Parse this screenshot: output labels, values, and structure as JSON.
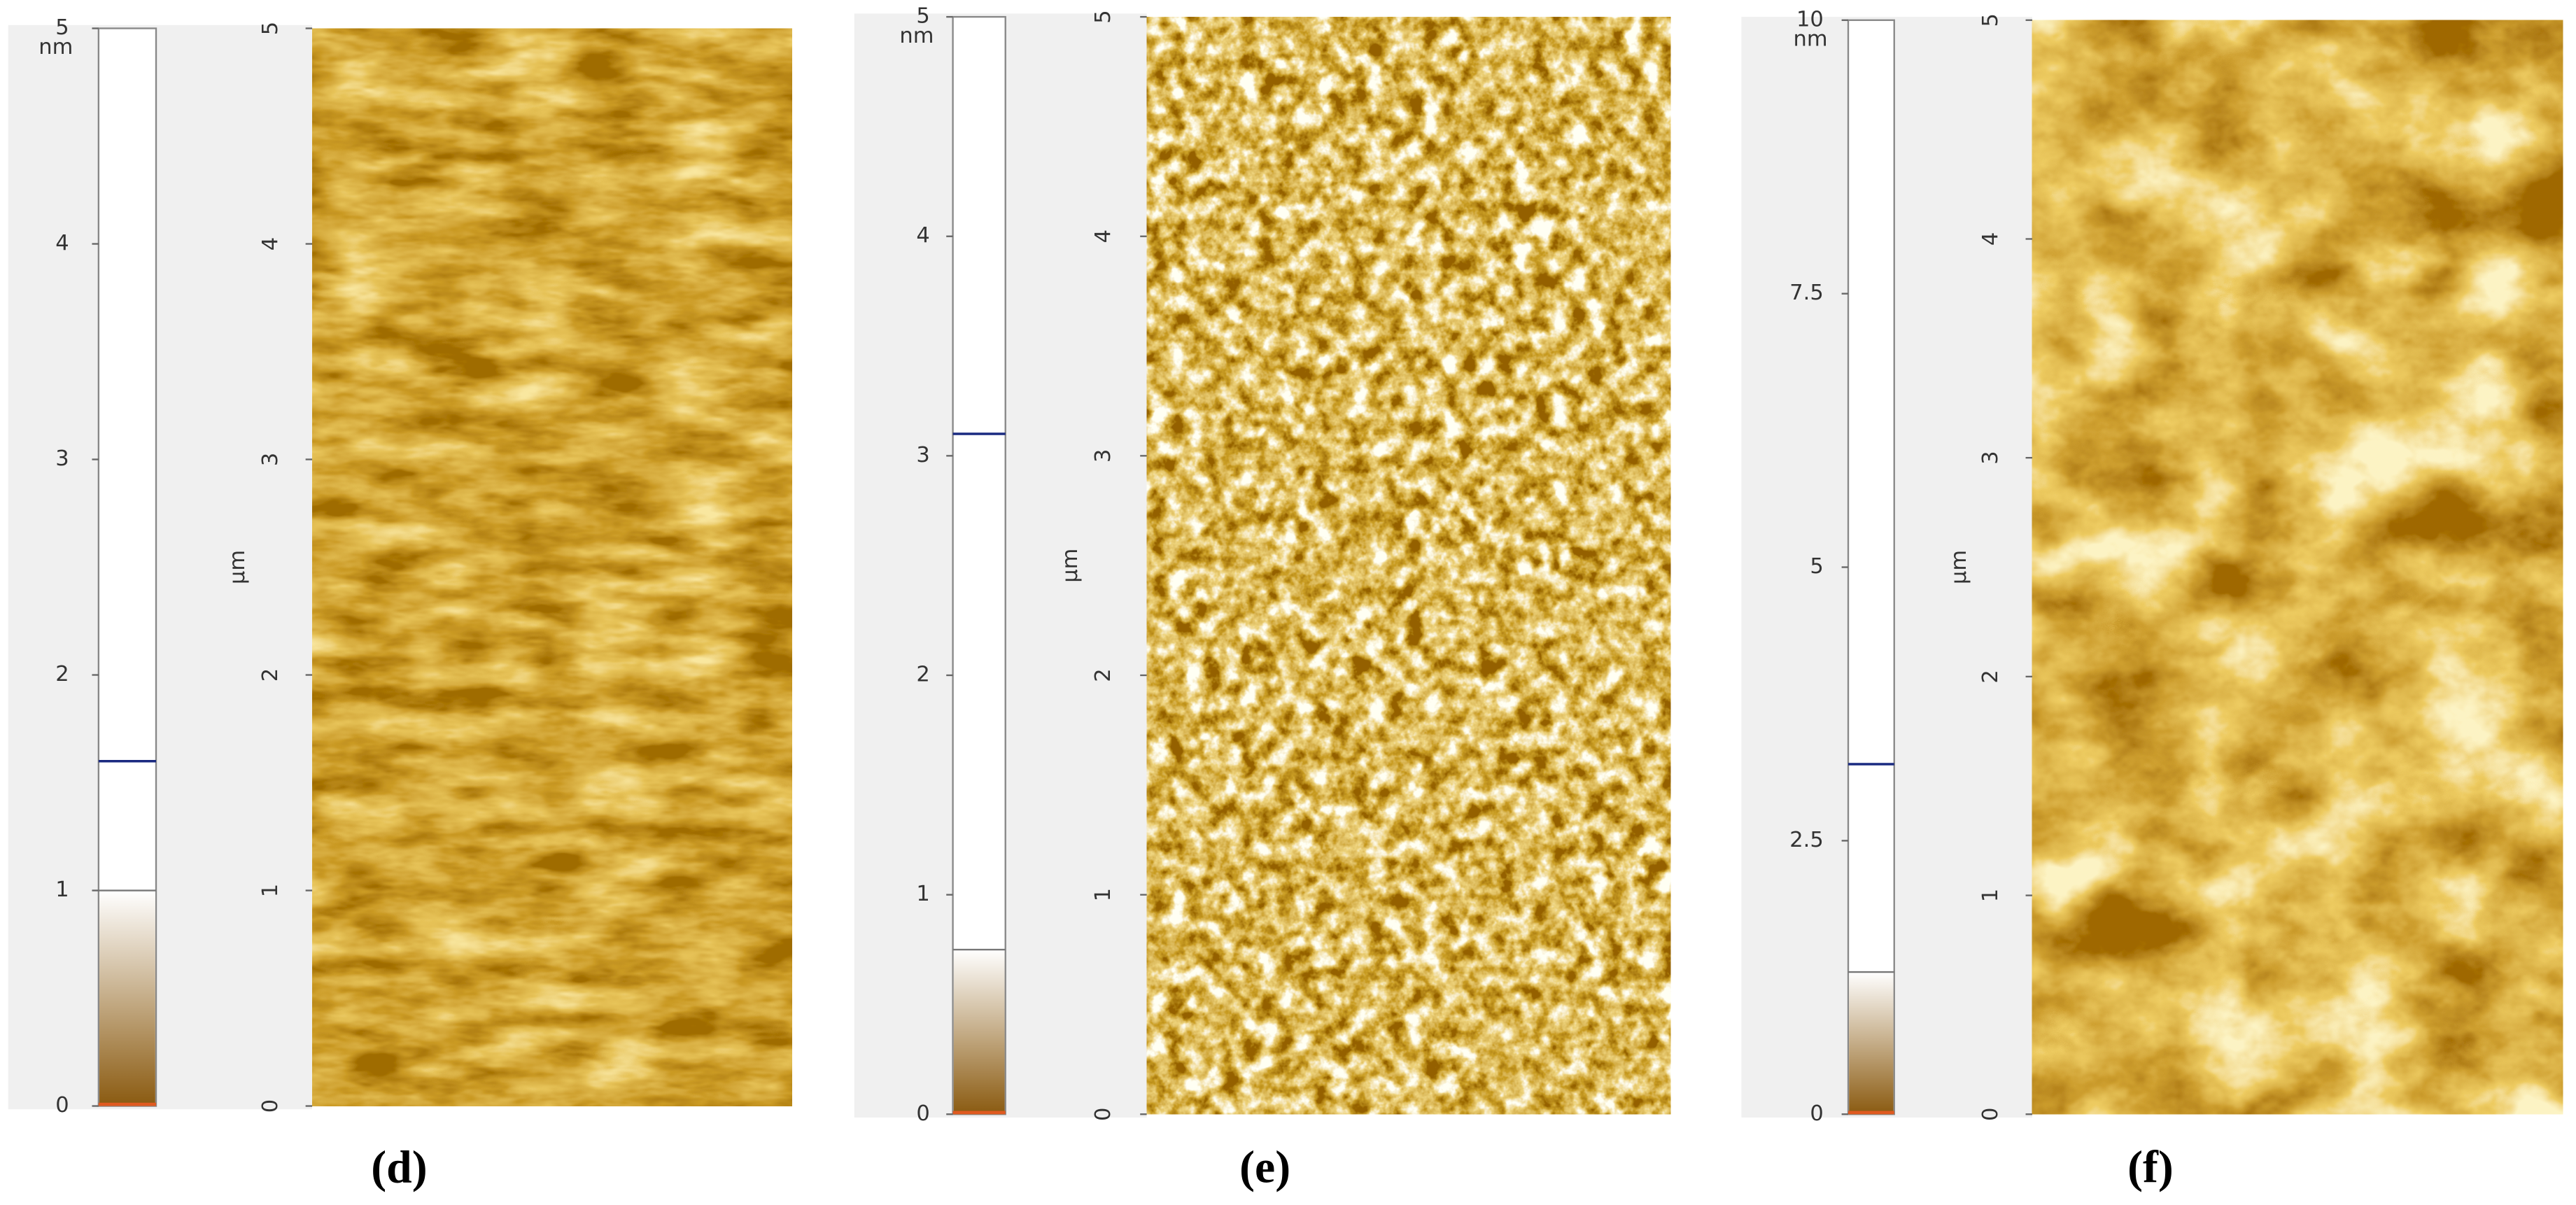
{
  "panels": [
    {
      "label": "(d)",
      "colorbar": {
        "unit": "nm",
        "ylim": [
          0,
          5
        ],
        "yticks": [
          0,
          1,
          2,
          3,
          4,
          5
        ],
        "marker": 1.6,
        "gradient_top": 1.0
      },
      "axis": {
        "label": "μm",
        "ylim": [
          0,
          5
        ],
        "yticks": [
          0,
          1,
          2,
          3,
          4,
          5
        ]
      }
    },
    {
      "label": "(e)",
      "colorbar": {
        "unit": "nm",
        "ylim": [
          0,
          5
        ],
        "yticks": [
          0,
          1,
          2,
          3,
          4,
          5
        ],
        "marker": 3.1,
        "gradient_top": 0.75
      },
      "axis": {
        "label": "μm",
        "ylim": [
          0,
          5
        ],
        "yticks": [
          0,
          1,
          2,
          3,
          4,
          5
        ]
      }
    },
    {
      "label": "(f)",
      "colorbar": {
        "unit": "nm",
        "ylim": [
          0,
          10
        ],
        "yticks": [
          0,
          2.5,
          5,
          7.5,
          10
        ],
        "marker": 3.2,
        "gradient_top": 1.3
      },
      "axis": {
        "label": "μm",
        "ylim": [
          0,
          5
        ],
        "yticks": [
          0,
          1,
          2,
          3,
          4,
          5
        ]
      }
    }
  ]
}
